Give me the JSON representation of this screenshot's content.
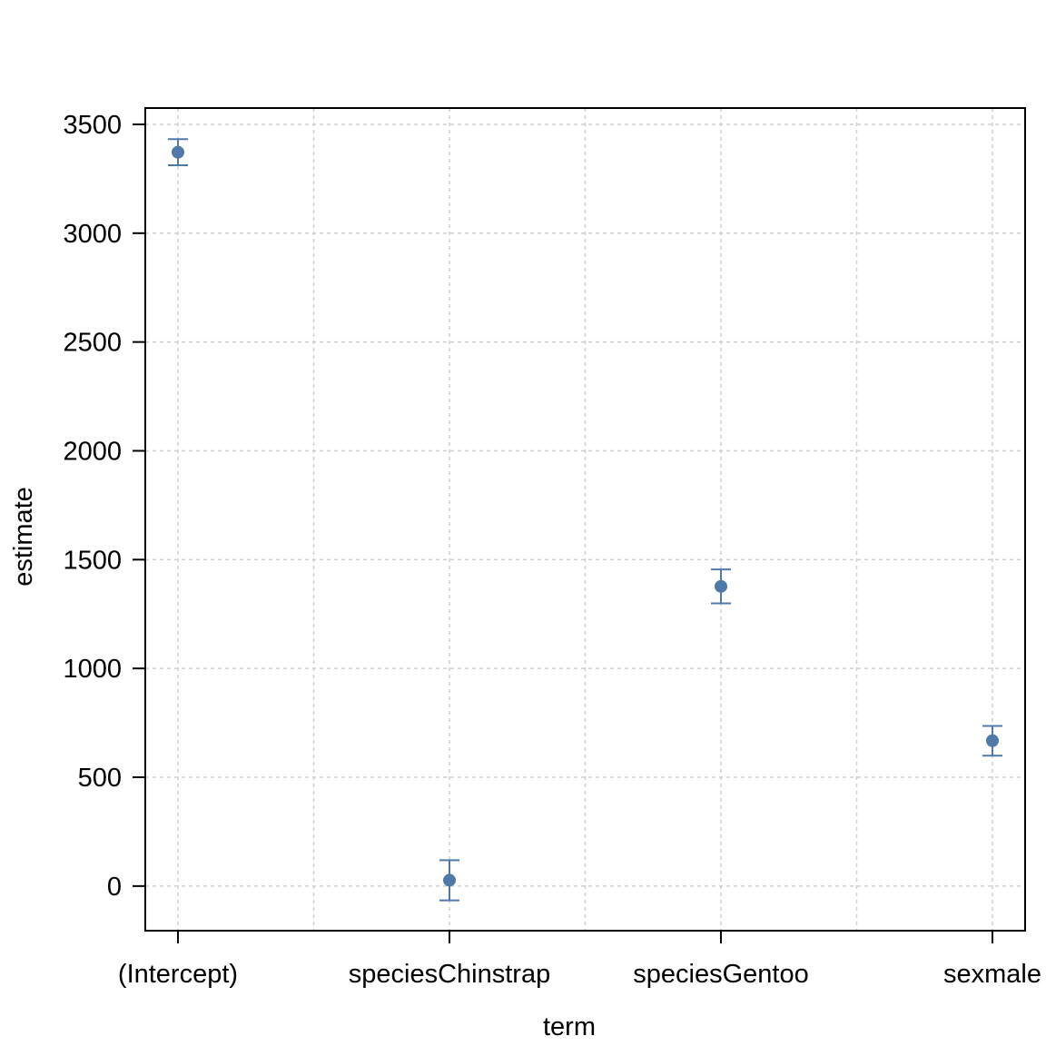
{
  "chart_data": {
    "type": "scatter",
    "xlabel": "term",
    "ylabel": "estimate",
    "categories": [
      "(Intercept)",
      "speciesChinstrap",
      "speciesGentoo",
      "sexmale"
    ],
    "estimate": [
      3372,
      27,
      1377,
      668
    ],
    "conf_low": [
      3312,
      -66,
      1299,
      599
    ],
    "conf_high": [
      3432,
      119,
      1455,
      736
    ],
    "yticks": [
      0,
      500,
      1000,
      1500,
      2000,
      2500,
      3000,
      3500
    ],
    "ylim": [
      -205,
      3575
    ],
    "grid": true,
    "legend": "none",
    "point_color": "#4f79a8"
  }
}
